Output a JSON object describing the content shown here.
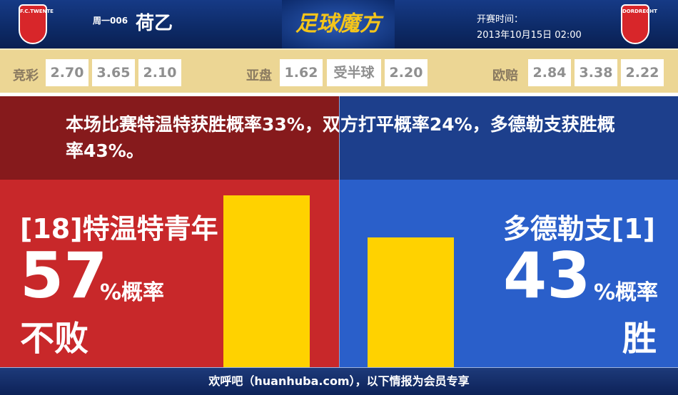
{
  "header": {
    "home_logo_text": "F.C.TWENTE",
    "away_logo_text": "DORDRECHT",
    "match_code": "周一006",
    "league": "荷乙",
    "brand": "足球魔方",
    "kickoff_label": "开赛时间：",
    "kickoff_time": "2013年10月15日 02:00"
  },
  "odds": {
    "jingcai": {
      "label": "竞彩",
      "values": [
        "2.70",
        "3.65",
        "2.10"
      ]
    },
    "asian": {
      "label": "亚盘",
      "values": [
        "1.62",
        "受半球",
        "2.20"
      ]
    },
    "euro": {
      "label": "欧赔",
      "values": [
        "2.84",
        "3.38",
        "2.22"
      ]
    }
  },
  "summary": "本场比赛特温特获胜概率33%，双方打平概率24%，多德勒支获胜概率43%。",
  "home": {
    "name": "[18]特温特青年",
    "percent": "57",
    "unit": "%概率",
    "outcome": "不败",
    "bar_value": 57,
    "color": "#c8282a"
  },
  "away": {
    "name": "多德勒支[1]",
    "percent": "43",
    "unit": "%概率",
    "outcome": "胜",
    "bar_value": 43,
    "color": "#2a5fca"
  },
  "bar_color": "#ffd200",
  "footer": "欢呼吧（huanhuba.com），以下情报为会员专享"
}
